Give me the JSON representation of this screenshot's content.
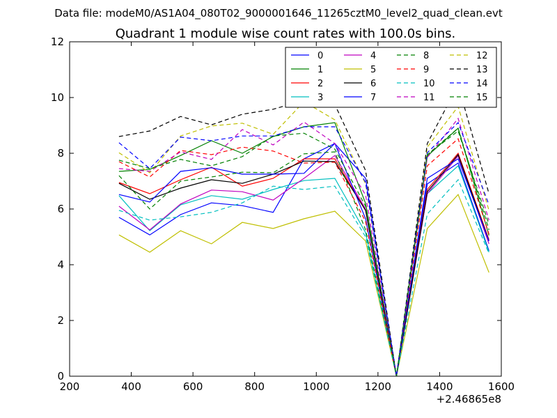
{
  "header": {
    "data_file": "Data file: modeM0/AS1A04_080T02_9000001646_11265cztM0_level2_quad_clean.evt"
  },
  "chart_data": {
    "type": "line",
    "title": "Quadrant 1 module wise count rates with 100.0s bins.",
    "xlabel": "",
    "ylabel": "",
    "x_offset_label": "+2.46865e8",
    "xlim": [
      200,
      1600
    ],
    "ylim": [
      0,
      12
    ],
    "xticks": [
      "200",
      "400",
      "600",
      "800",
      "1000",
      "1200",
      "1400",
      "1600"
    ],
    "yticks": [
      "0",
      "2",
      "4",
      "6",
      "8",
      "10",
      "12"
    ],
    "grid": false,
    "legend_position": "top-right",
    "x": [
      360,
      460,
      560,
      660,
      760,
      860,
      960,
      1060,
      1160,
      1260,
      1360,
      1460,
      1560
    ],
    "series": [
      {
        "name": "0",
        "color": "#0000ff",
        "dashed": false,
        "values": [
          5.7,
          5.07,
          5.8,
          6.22,
          6.12,
          5.88,
          7.8,
          8.35,
          7.1,
          0.0,
          6.9,
          7.65,
          4.5
        ]
      },
      {
        "name": "1",
        "color": "#008000",
        "dashed": false,
        "values": [
          7.35,
          7.42,
          7.92,
          8.45,
          8.0,
          8.6,
          8.95,
          9.1,
          6.2,
          0.0,
          7.9,
          8.9,
          5.05
        ]
      },
      {
        "name": "2",
        "color": "#ff0000",
        "dashed": false,
        "values": [
          6.95,
          6.55,
          7.05,
          7.5,
          6.82,
          7.1,
          7.8,
          7.8,
          5.95,
          0.0,
          6.7,
          8.0,
          4.9
        ]
      },
      {
        "name": "3",
        "color": "#00bfbf",
        "dashed": false,
        "values": [
          6.48,
          5.22,
          6.15,
          6.48,
          6.35,
          6.7,
          7.02,
          7.1,
          5.15,
          0.0,
          6.55,
          7.55,
          4.45
        ]
      },
      {
        "name": "4",
        "color": "#bf00bf",
        "dashed": false,
        "values": [
          6.1,
          5.25,
          6.18,
          6.68,
          6.62,
          6.32,
          7.1,
          7.92,
          6.0,
          0.0,
          6.55,
          7.9,
          4.75
        ]
      },
      {
        "name": "5",
        "color": "#bfbf00",
        "dashed": false,
        "values": [
          5.07,
          4.45,
          5.22,
          4.75,
          5.52,
          5.3,
          5.65,
          5.92,
          4.85,
          0.0,
          5.3,
          6.52,
          3.72
        ]
      },
      {
        "name": "6",
        "color": "#000000",
        "dashed": false,
        "values": [
          6.92,
          6.35,
          6.75,
          7.05,
          6.92,
          7.25,
          7.72,
          7.7,
          5.95,
          0.0,
          6.62,
          7.95,
          4.85
        ]
      },
      {
        "name": "7",
        "color": "#0000ff",
        "dashed": false,
        "values": [
          6.52,
          6.25,
          7.35,
          7.48,
          7.25,
          7.25,
          7.28,
          8.35,
          5.65,
          0.0,
          7.1,
          7.8,
          4.85
        ]
      },
      {
        "name": "8",
        "color": "#008000",
        "dashed": true,
        "values": [
          7.2,
          6.0,
          7.0,
          7.15,
          7.32,
          7.3,
          7.98,
          8.05,
          5.25,
          0.0,
          7.95,
          8.9,
          5.25
        ]
      },
      {
        "name": "9",
        "color": "#ff0000",
        "dashed": true,
        "values": [
          7.7,
          7.15,
          8.1,
          7.95,
          8.22,
          8.08,
          7.65,
          7.68,
          5.55,
          0.0,
          7.55,
          8.52,
          5.1
        ]
      },
      {
        "name": "10",
        "color": "#00bfbf",
        "dashed": true,
        "values": [
          5.95,
          5.6,
          5.72,
          5.88,
          6.22,
          6.82,
          6.7,
          6.82,
          5.0,
          0.0,
          5.82,
          7.05,
          4.4
        ]
      },
      {
        "name": "11",
        "color": "#bf00bf",
        "dashed": true,
        "values": [
          7.45,
          7.35,
          8.05,
          7.78,
          8.85,
          8.3,
          9.12,
          8.35,
          6.5,
          0.0,
          7.85,
          9.25,
          5.6
        ]
      },
      {
        "name": "12",
        "color": "#bfbf00",
        "dashed": true,
        "values": [
          8.02,
          7.3,
          8.62,
          8.98,
          9.08,
          8.68,
          9.85,
          9.2,
          6.9,
          0.0,
          8.22,
          9.68,
          5.95
        ]
      },
      {
        "name": "13",
        "color": "#000000",
        "dashed": true,
        "values": [
          8.6,
          8.8,
          9.32,
          9.02,
          9.4,
          9.58,
          9.9,
          9.75,
          7.38,
          0.0,
          8.35,
          10.45,
          6.55
        ]
      },
      {
        "name": "14",
        "color": "#0000ff",
        "dashed": true,
        "values": [
          8.38,
          7.45,
          8.58,
          8.45,
          8.62,
          8.62,
          8.95,
          8.95,
          6.95,
          0.0,
          8.02,
          9.1,
          6.15
        ]
      },
      {
        "name": "15",
        "color": "#008000",
        "dashed": true,
        "values": [
          7.75,
          7.45,
          7.78,
          7.55,
          7.88,
          8.62,
          8.72,
          8.15,
          6.1,
          0.0,
          7.95,
          8.8,
          5.45
        ]
      }
    ]
  }
}
